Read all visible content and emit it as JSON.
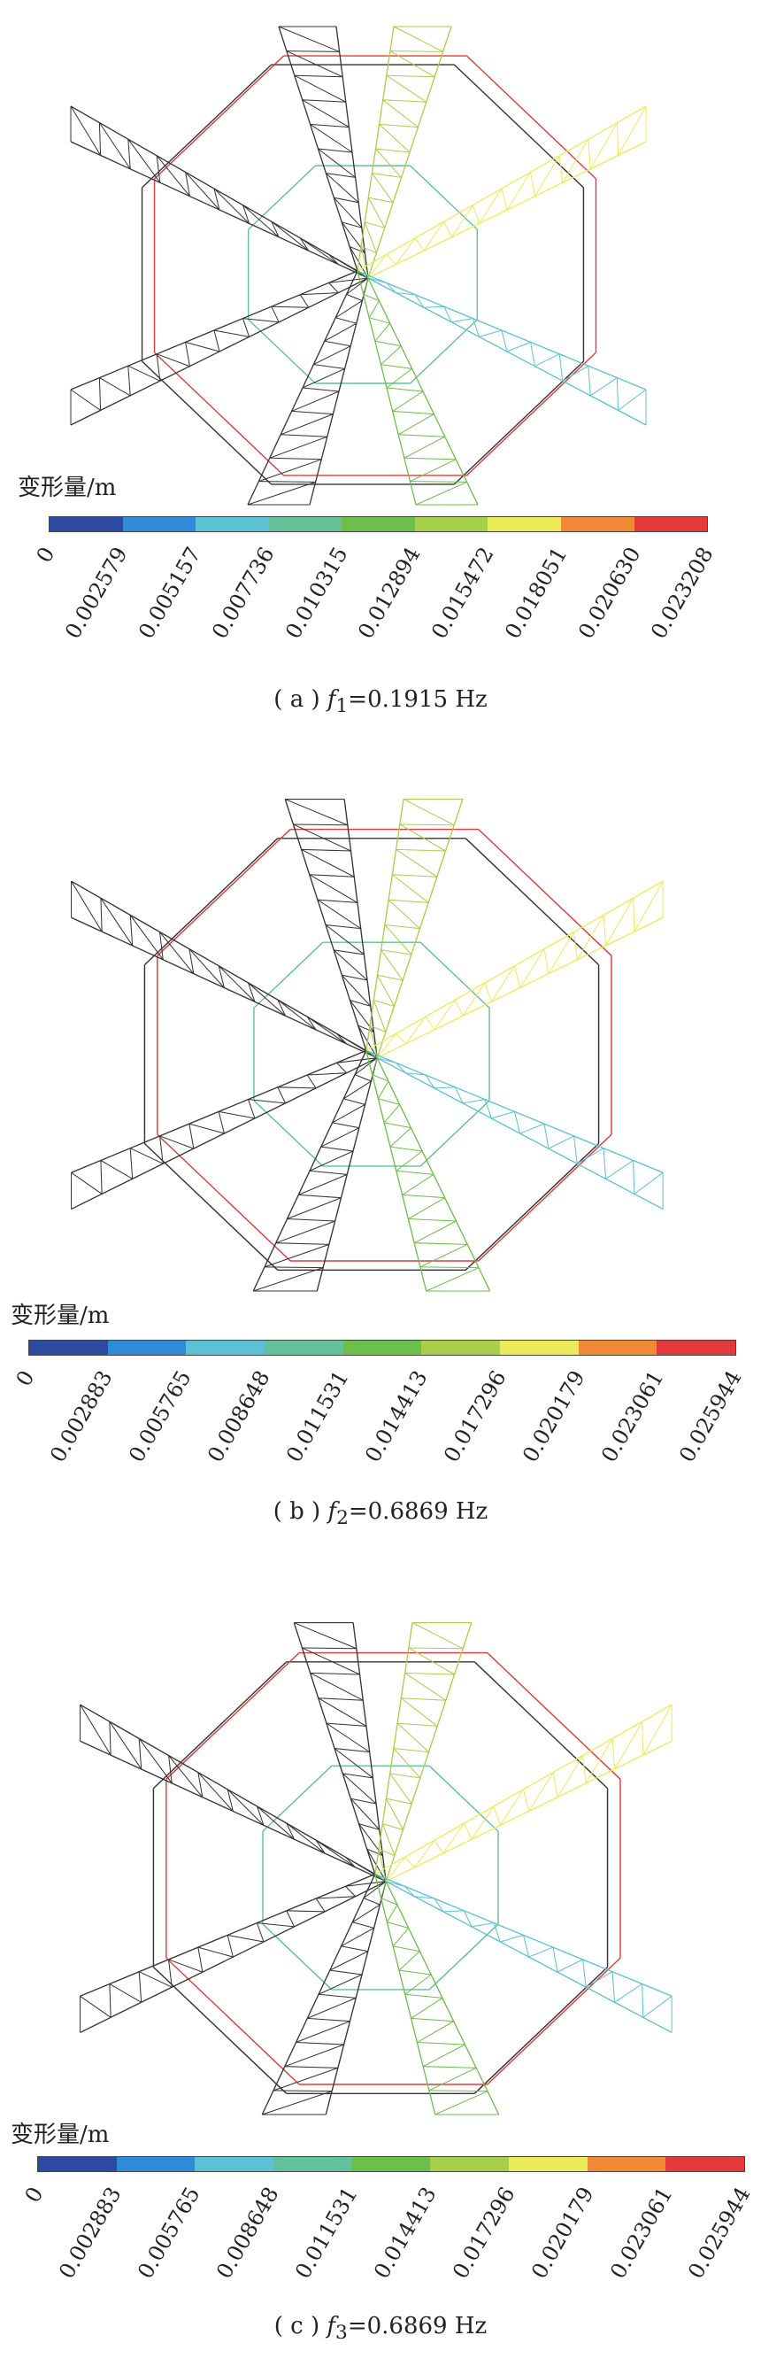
{
  "legend_colors": [
    "#2b4aa0",
    "#2f8ad8",
    "#5bc2d6",
    "#62c19a",
    "#6cbf4a",
    "#a7cf4a",
    "#ecec5a",
    "#f08a36",
    "#e23a3a"
  ],
  "panels": [
    {
      "legend_label": "变形量/m",
      "ticks": [
        "0",
        "0.002579",
        "0.005157",
        "0.007736",
        "0.010315",
        "0.012894",
        "0.015472",
        "0.018051",
        "0.020630",
        "0.023208"
      ],
      "caption_prefix": "( a ) ",
      "caption_var": "f",
      "caption_sub": "1",
      "caption_value": "=0.1915 Hz"
    },
    {
      "legend_label": "变形量/m",
      "ticks": [
        "0",
        "0.002883",
        "0.005765",
        "0.008648",
        "0.011531",
        "0.014413",
        "0.017296",
        "0.020179",
        "0.023061",
        "0.025944"
      ],
      "caption_prefix": "( b ) ",
      "caption_var": "f",
      "caption_sub": "2",
      "caption_value": "=0.6869 Hz"
    },
    {
      "legend_label": "变形量/m",
      "ticks": [
        "0",
        "0.002883",
        "0.005765",
        "0.008648",
        "0.011531",
        "0.014413",
        "0.017296",
        "0.020179",
        "0.023061",
        "0.025944"
      ],
      "caption_prefix": "( c ) ",
      "caption_var": "f",
      "caption_sub": "3",
      "caption_value": "=0.6869 Hz"
    }
  ]
}
